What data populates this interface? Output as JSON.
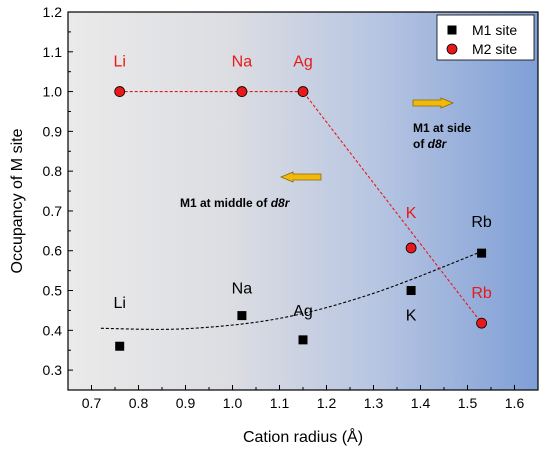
{
  "chart_data": {
    "type": "scatter",
    "xlabel": "Cation radius (Å)",
    "ylabel": "Occupancy of M site",
    "xlim": [
      0.65,
      1.65
    ],
    "ylim": [
      0.25,
      1.2
    ],
    "x_ticks": [
      "0.7",
      "0.8",
      "0.9",
      "1.0",
      "1.1",
      "1.2",
      "1.3",
      "1.4",
      "1.5",
      "1.6"
    ],
    "y_ticks": [
      "0.3",
      "0.4",
      "0.5",
      "0.6",
      "0.7",
      "0.8",
      "0.9",
      "1.0",
      "1.1",
      "1.2"
    ],
    "grid": false,
    "legend_position": "top-right",
    "background": "gradient from light gray (left) to blue (right)",
    "series": [
      {
        "name": "M1 site",
        "marker": "square",
        "color": "#000000",
        "label_color": "#000000",
        "points": [
          {
            "label": "Li",
            "x": 0.76,
            "y": 0.36
          },
          {
            "label": "Na",
            "x": 1.02,
            "y": 0.437
          },
          {
            "label": "Ag",
            "x": 1.15,
            "y": 0.376
          },
          {
            "label": "K",
            "x": 1.38,
            "y": 0.5
          },
          {
            "label": "Rb",
            "x": 1.53,
            "y": 0.594
          }
        ],
        "trend": {
          "style": "dashed",
          "color": "#000000",
          "x": [
            0.72,
            0.9,
            1.1,
            1.3,
            1.53
          ],
          "y": [
            0.405,
            0.404,
            0.43,
            0.493,
            0.598
          ]
        }
      },
      {
        "name": "M2 site",
        "marker": "circle",
        "color": "#e8191a",
        "label_color": "#e8191a",
        "points": [
          {
            "label": "Li",
            "x": 0.76,
            "y": 1.0
          },
          {
            "label": "Na",
            "x": 1.02,
            "y": 1.0
          },
          {
            "label": "Ag",
            "x": 1.15,
            "y": 1.0
          },
          {
            "label": "K",
            "x": 1.38,
            "y": 0.607
          },
          {
            "label": "Rb",
            "x": 1.53,
            "y": 0.418
          }
        ],
        "trend": {
          "style": "dashed",
          "color": "#e8191a",
          "x": [
            0.76,
            1.15,
            1.53
          ],
          "y": [
            1.0,
            1.0,
            0.418
          ]
        }
      }
    ],
    "annotations": [
      {
        "text_parts": [
          "M1 at side",
          "of ",
          "d8r"
        ],
        "arrow": "right"
      },
      {
        "text_parts": [
          "M1 at middle of ",
          "d8r"
        ],
        "arrow": "left"
      }
    ],
    "arrow_color": "#f2b90d"
  }
}
